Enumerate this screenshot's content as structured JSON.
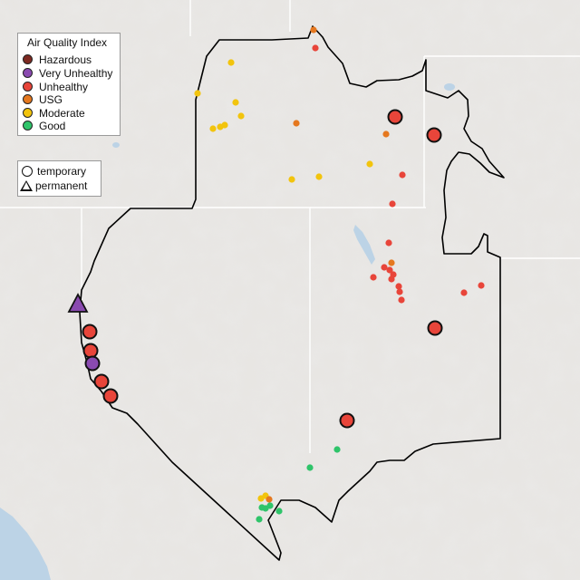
{
  "legend": {
    "title": "Air Quality Index",
    "categories": [
      {
        "label": "Hazardous",
        "color": "#7e2a22"
      },
      {
        "label": "Very Unhealthy",
        "color": "#8a4ab0"
      },
      {
        "label": "Unhealthy",
        "color": "#e8453a"
      },
      {
        "label": "USG",
        "color": "#e5781f"
      },
      {
        "label": "Moderate",
        "color": "#f2c40d"
      },
      {
        "label": "Good",
        "color": "#2fc46a"
      }
    ],
    "site_types": [
      {
        "label": "temporary",
        "shape": "circle"
      },
      {
        "label": "permanent",
        "shape": "triangle"
      }
    ]
  },
  "colors": {
    "terrain_bg": "#e8e6e3",
    "terrain_shade": "#d6d3cf",
    "water": "#bcd3e6",
    "boundary": "#000000",
    "state_lines": "#ffffff"
  }
}
